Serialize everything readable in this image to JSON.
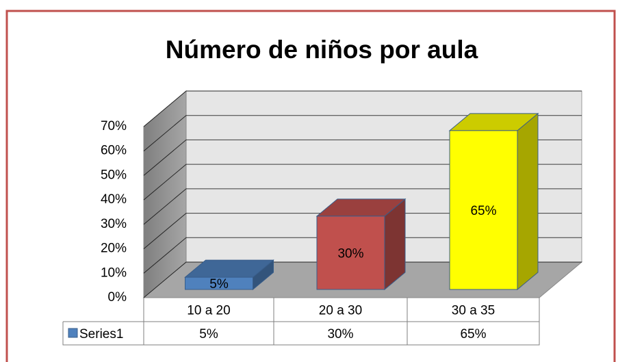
{
  "chart_data": {
    "type": "bar3d",
    "title": "Número de niños por aula",
    "categories": [
      "10 a 20",
      "20 a 30",
      "30 a 35"
    ],
    "series": [
      {
        "name": "Series1",
        "color": "#4f81bd",
        "colors": [
          "#4f81bd",
          "#c0504d",
          "#ffff00"
        ],
        "values": [
          5,
          30,
          65
        ],
        "value_labels": [
          "5%",
          "30%",
          "65%"
        ]
      }
    ],
    "ylim": [
      0,
      70
    ],
    "yticks": [
      {
        "value": 0,
        "label": "0%"
      },
      {
        "value": 10,
        "label": "10%"
      },
      {
        "value": 20,
        "label": "20%"
      },
      {
        "value": 30,
        "label": "30%"
      },
      {
        "value": 40,
        "label": "40%"
      },
      {
        "value": 50,
        "label": "50%"
      },
      {
        "value": 60,
        "label": "60%"
      },
      {
        "value": 70,
        "label": "70%"
      }
    ],
    "grid": true,
    "data_table": true
  }
}
